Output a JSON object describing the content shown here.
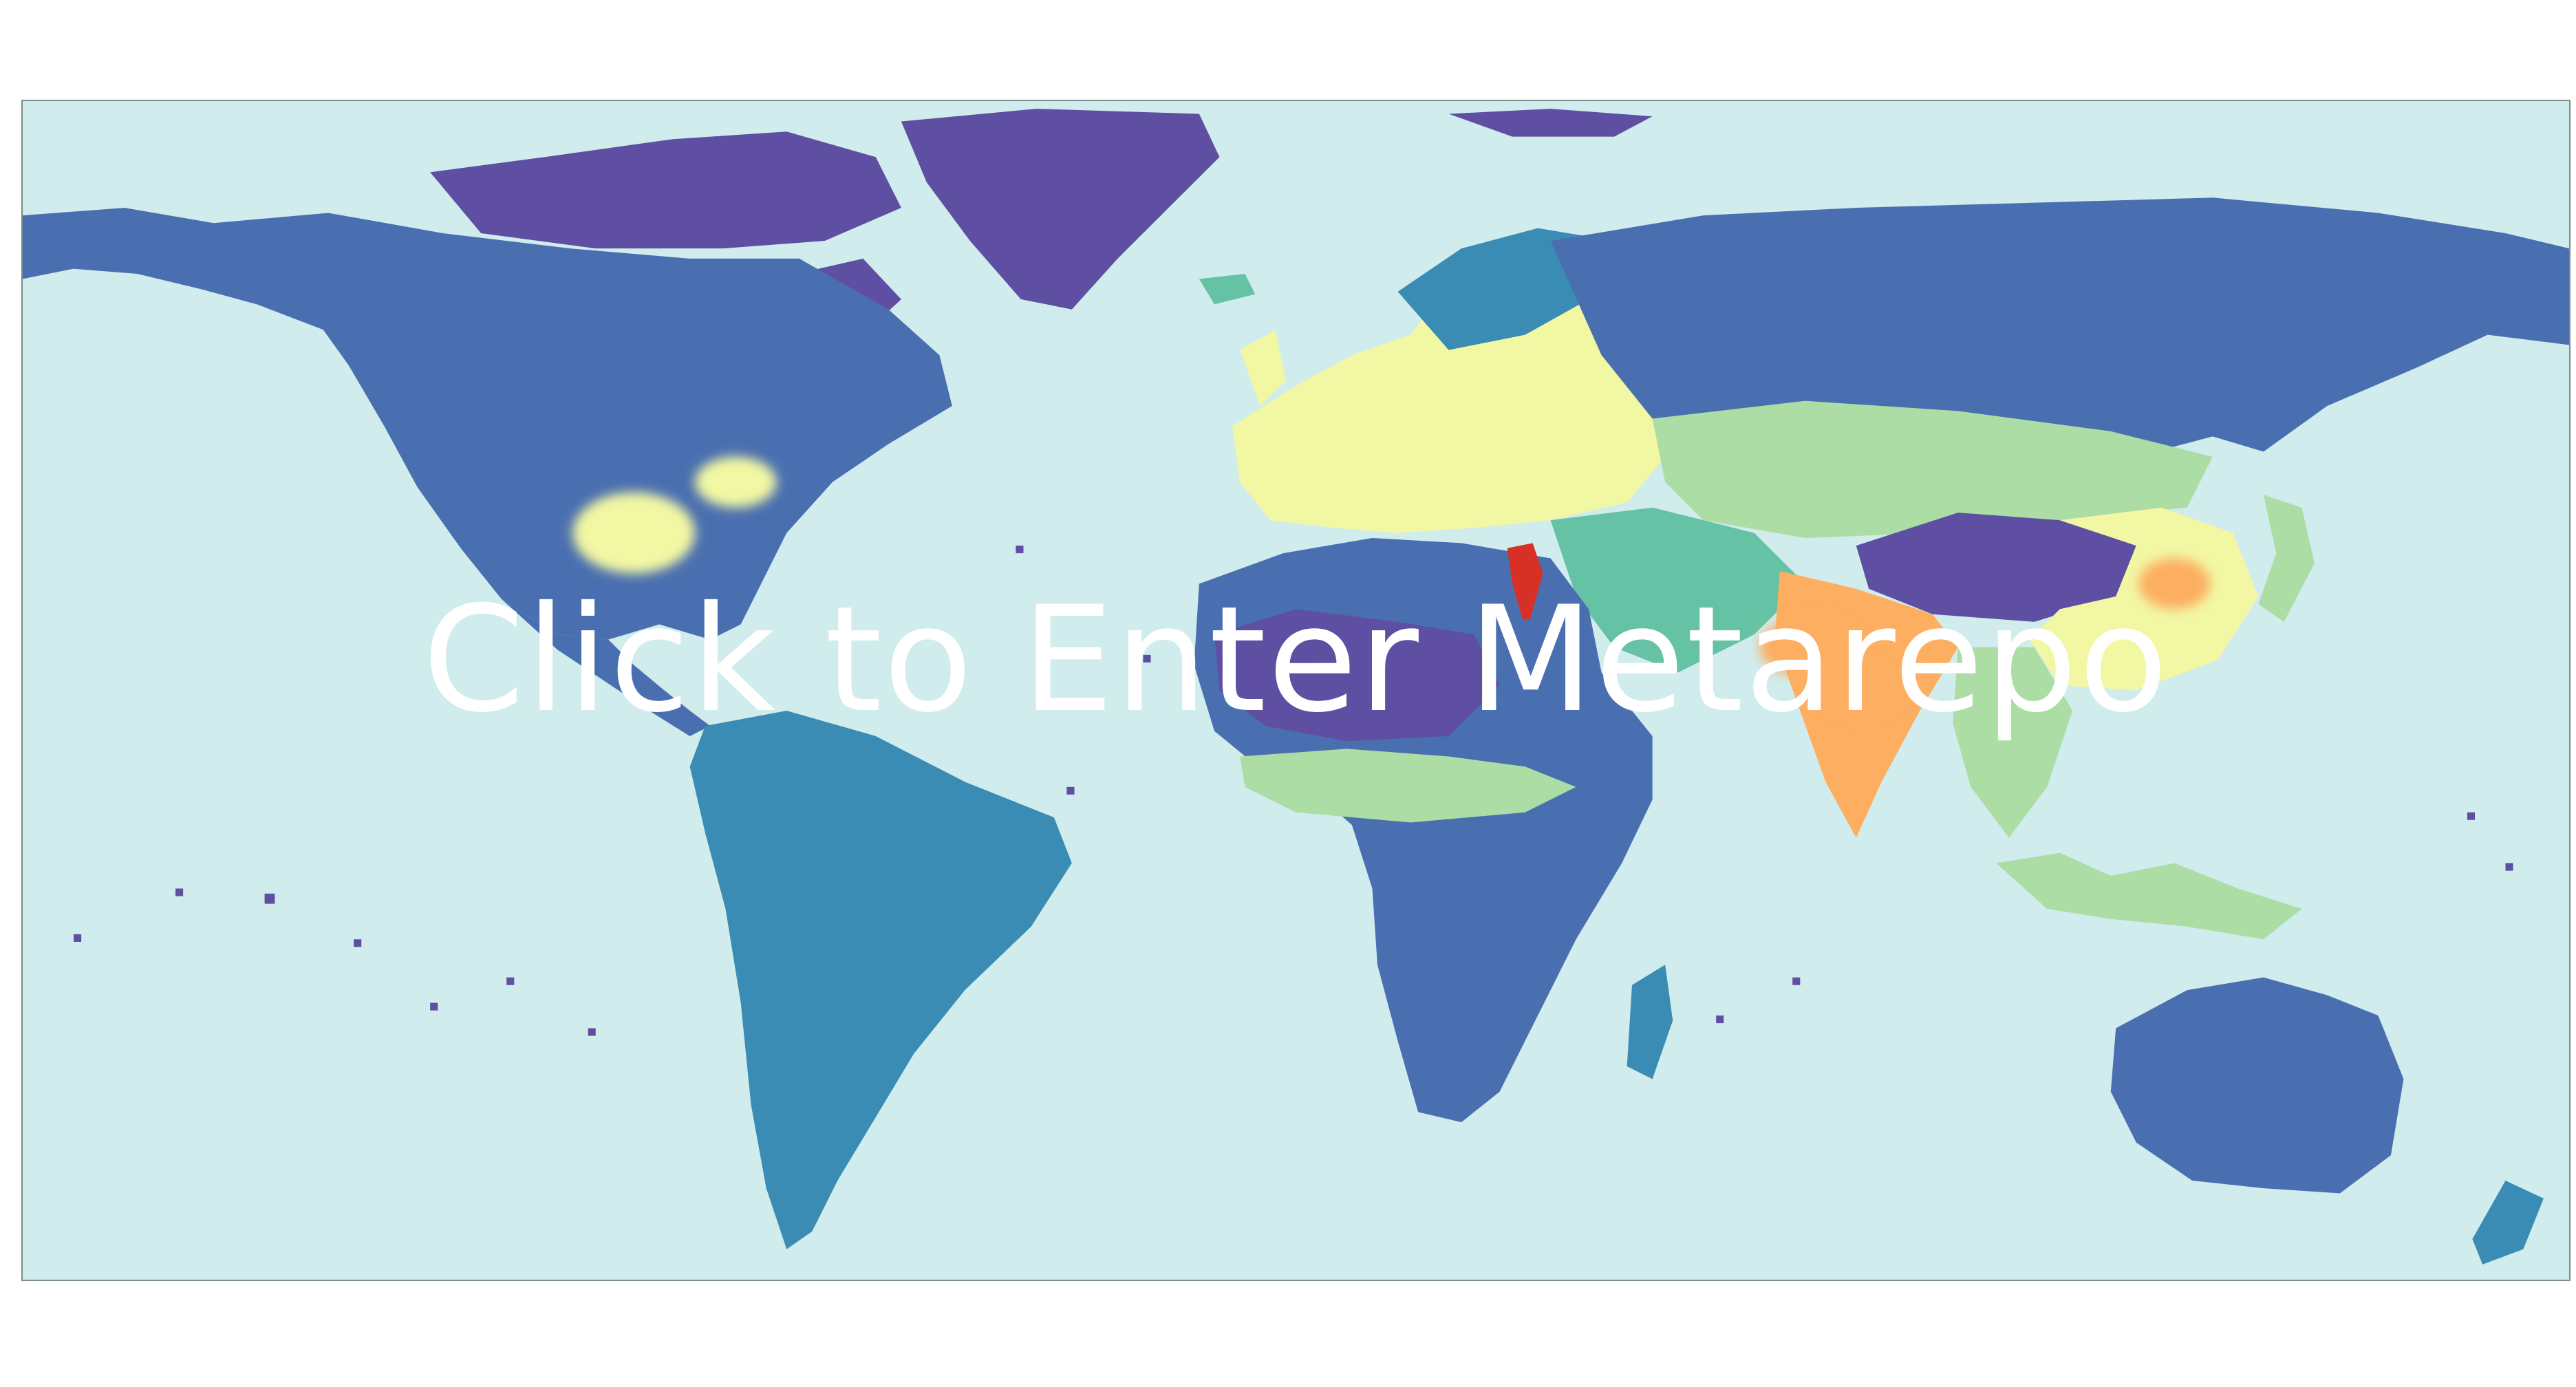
{
  "overlay": {
    "link_text": "Click to Enter Metarepo"
  },
  "map": {
    "projection": "equirectangular",
    "colors": {
      "ocean": "#d0eced",
      "very_low": "#5e4fa2",
      "low": "#4a6fb0",
      "low_mid": "#3a8cb4",
      "mid": "#66c2a5",
      "mid_high": "#abdda4",
      "high": "#f2f7a3",
      "very_high": "#fdae61",
      "extreme": "#d73027",
      "border": "#7a8a8a"
    }
  }
}
